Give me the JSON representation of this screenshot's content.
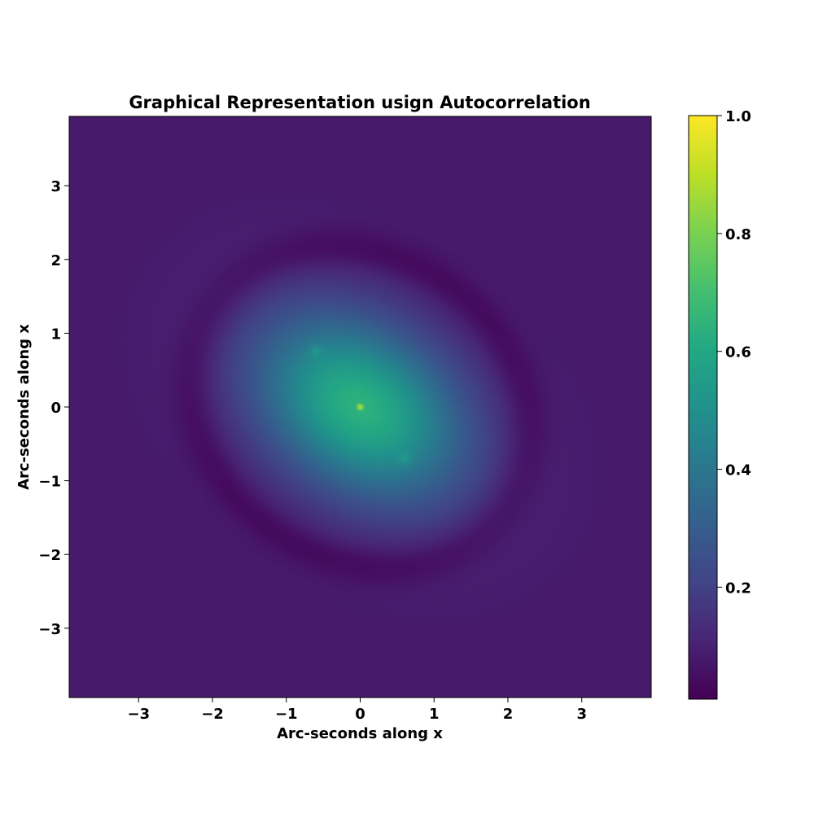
{
  "chart_data": {
    "type": "heatmap",
    "title": "Graphical Representation usign Autocorrelation",
    "xlabel": "Arc-seconds along x",
    "ylabel": "Arc-seconds along x",
    "xlim": [
      -3.94,
      3.94
    ],
    "ylim": [
      -3.94,
      3.94
    ],
    "xticks": [
      -3,
      -2,
      -1,
      0,
      1,
      2,
      3
    ],
    "yticks": [
      -3,
      -2,
      -1,
      0,
      1,
      2,
      3
    ],
    "xtick_labels": [
      "−3",
      "−2",
      "−1",
      "0",
      "1",
      "2",
      "3"
    ],
    "ytick_labels": [
      "−3",
      "−2",
      "−1",
      "0",
      "1",
      "2",
      "3"
    ],
    "colormap": "viridis",
    "colorbar": {
      "range": [
        0.01,
        1.0
      ],
      "ticks": [
        0.2,
        0.4,
        0.6,
        0.8,
        1.0
      ],
      "tick_labels": [
        "0.2",
        "0.4",
        "0.6",
        "0.8",
        "1.0"
      ]
    },
    "features": {
      "central_peak": {
        "x": 0.0,
        "y": 0.0,
        "value": 1.0
      },
      "halo_peak_value": 0.58,
      "halo_axis_angle_deg": -35,
      "secondary_peaks": [
        {
          "x": -0.6,
          "y": 0.75,
          "value": 0.6
        },
        {
          "x": 0.6,
          "y": -0.7,
          "value": 0.6
        }
      ],
      "dark_ring_radius": 2.2,
      "background_level": 0.08
    },
    "grid": false
  }
}
